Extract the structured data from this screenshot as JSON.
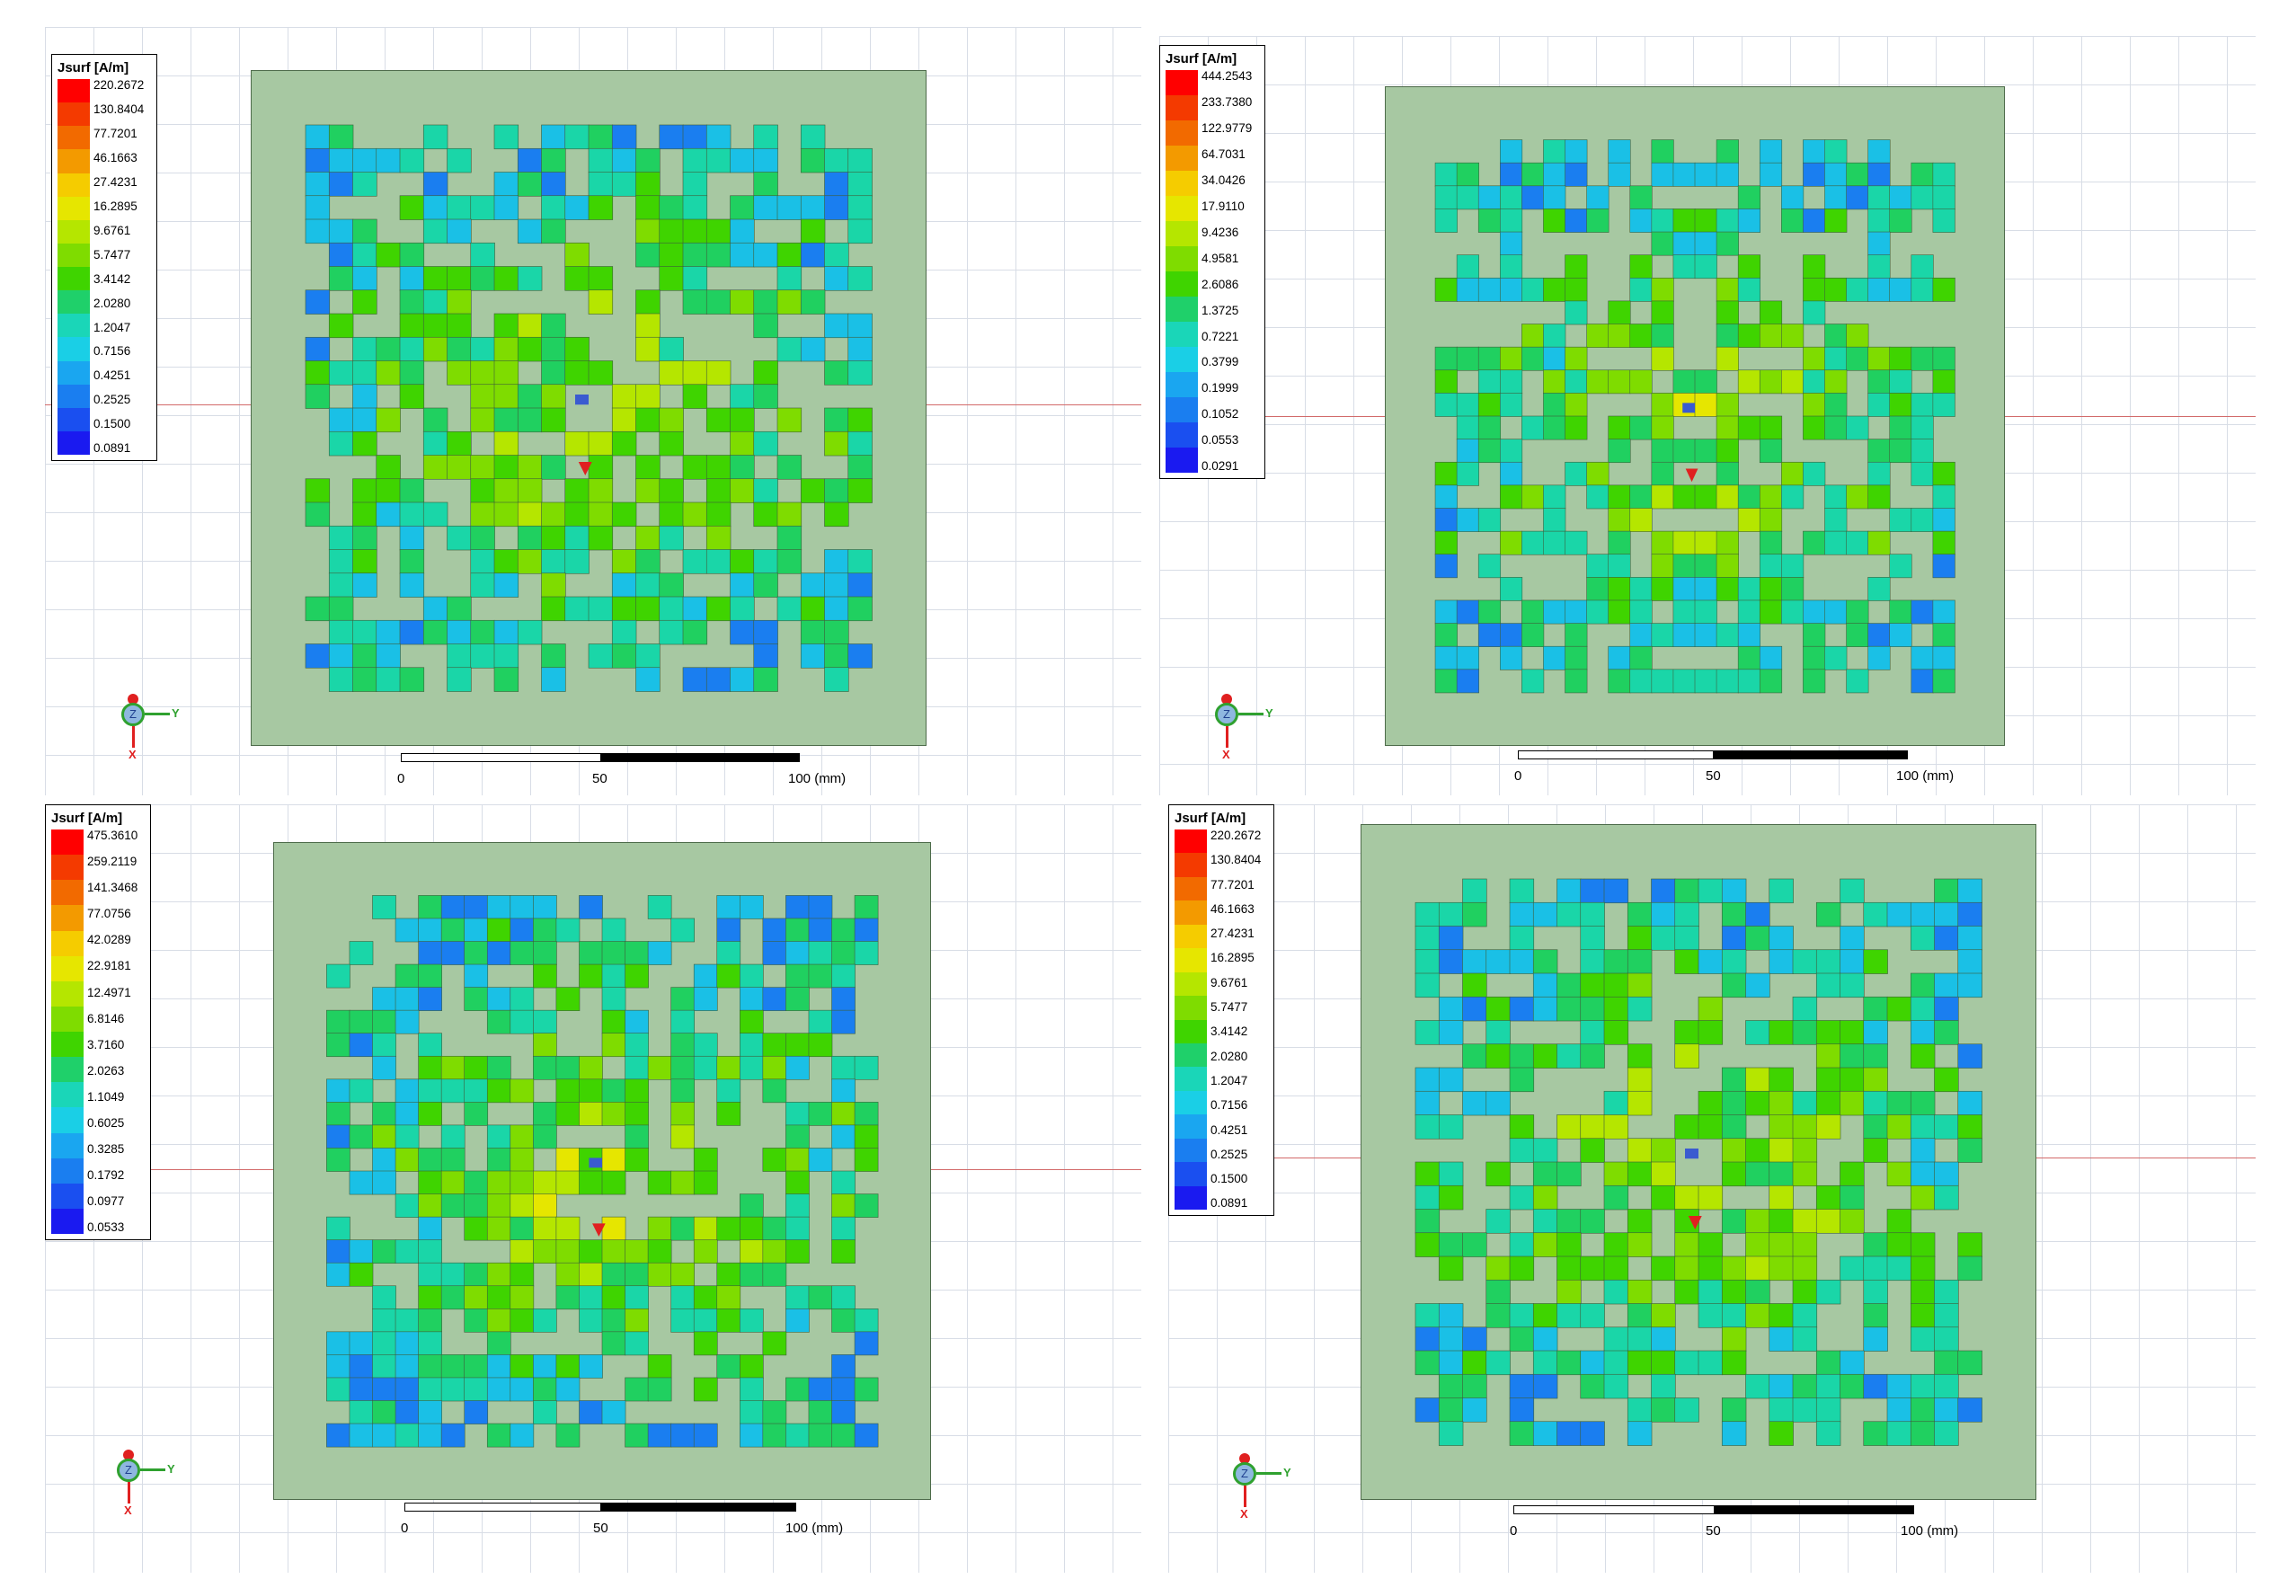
{
  "panels": [
    {
      "legend": {
        "title": "Jsurf [A/m]",
        "values": [
          "220.2672",
          "130.8404",
          "77.7201",
          "46.1663",
          "27.4231",
          "16.2895",
          "9.6761",
          "5.7477",
          "3.4142",
          "2.0280",
          "1.2047",
          "0.7156",
          "0.4251",
          "0.2525",
          "0.1500",
          "0.0891"
        ]
      },
      "scale": {
        "zero": "0",
        "mid": "50",
        "end": "100 (mm)"
      },
      "triad": {
        "z": "Z",
        "y": "Y",
        "x": "X"
      }
    },
    {
      "legend": {
        "title": "Jsurf [A/m]",
        "values": [
          "444.2543",
          "233.7380",
          "122.9779",
          "64.7031",
          "34.0426",
          "17.9110",
          "9.4236",
          "4.9581",
          "2.6086",
          "1.3725",
          "0.7221",
          "0.3799",
          "0.1999",
          "0.1052",
          "0.0553",
          "0.0291"
        ]
      },
      "scale": {
        "zero": "0",
        "mid": "50",
        "end": "100 (mm)"
      },
      "triad": {
        "z": "Z",
        "y": "Y",
        "x": "X"
      }
    },
    {
      "legend": {
        "title": "Jsurf [A/m]",
        "values": [
          "475.3610",
          "259.2119",
          "141.3468",
          "77.0756",
          "42.0289",
          "22.9181",
          "12.4971",
          "6.8146",
          "3.7160",
          "2.0263",
          "1.1049",
          "0.6025",
          "0.3285",
          "0.1792",
          "0.0977",
          "0.0533"
        ]
      },
      "scale": {
        "zero": "0",
        "mid": "50",
        "end": "100 (mm)"
      },
      "triad": {
        "z": "Z",
        "y": "Y",
        "x": "X"
      }
    },
    {
      "legend": {
        "title": "Jsurf [A/m]",
        "values": [
          "220.2672",
          "130.8404",
          "77.7201",
          "46.1663",
          "27.4231",
          "16.2895",
          "9.6761",
          "5.7477",
          "3.4142",
          "2.0280",
          "1.2047",
          "0.7156",
          "0.4251",
          "0.2525",
          "0.1500",
          "0.0891"
        ]
      },
      "scale": {
        "zero": "0",
        "mid": "50",
        "end": "100 (mm)"
      },
      "triad": {
        "z": "Z",
        "y": "Y",
        "x": "X"
      }
    }
  ],
  "colors": {
    "legend_scale": [
      "#ff0000",
      "#f43a00",
      "#f26a00",
      "#f39a00",
      "#f5cc00",
      "#e6e600",
      "#b5e600",
      "#7fdc00",
      "#3fd400",
      "#1fd06a",
      "#1ad6b8",
      "#1acfe6",
      "#1aa6f0",
      "#1a7ef0",
      "#1a4ff0",
      "#1a1af0"
    ],
    "board": "#a7c8a2"
  }
}
